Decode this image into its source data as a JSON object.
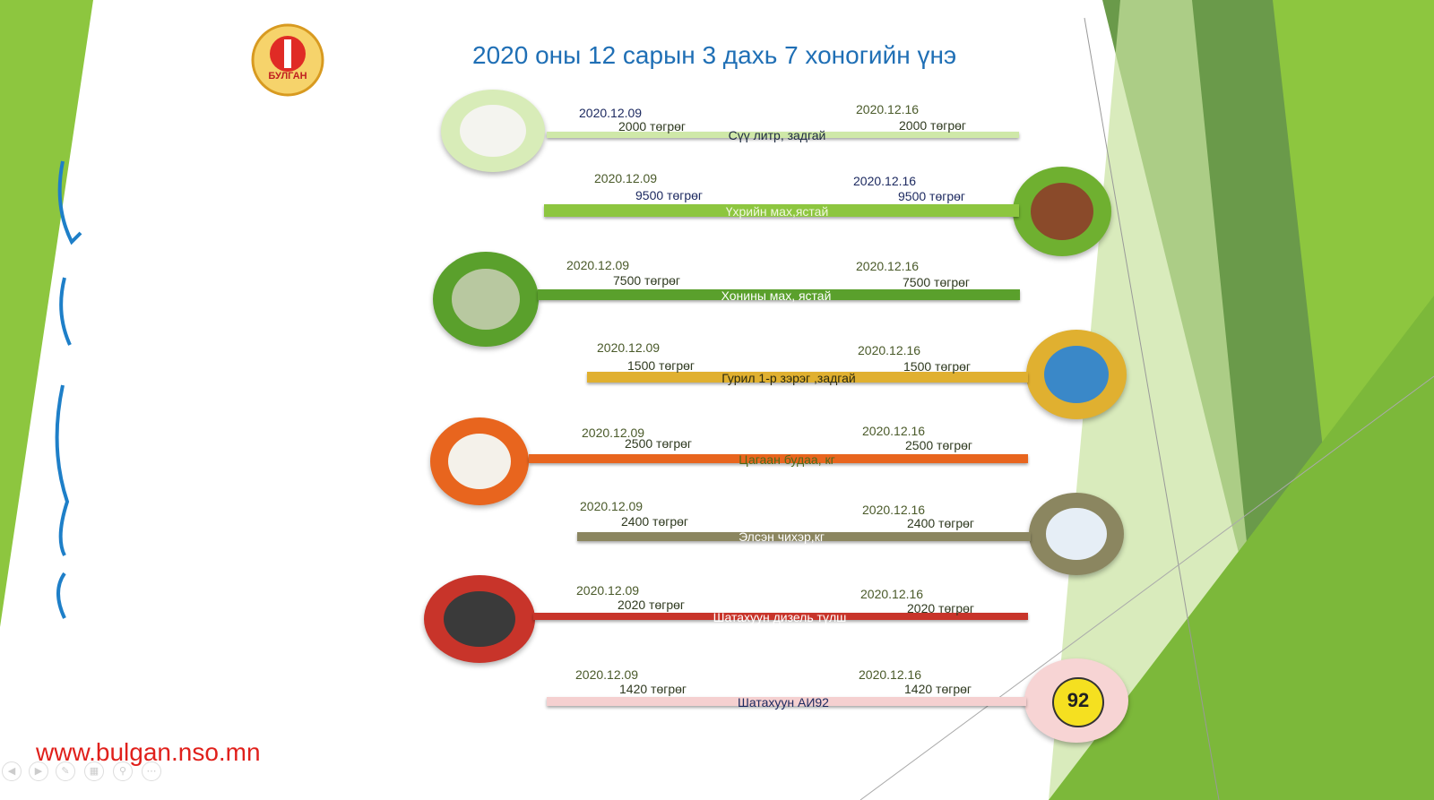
{
  "title": "2020 оны 12 сарын 3 дахь 7 хоногийн  үнэ",
  "logo_text": "БУЛГАН",
  "website": "www.bulgan.nso.mn",
  "colors": {
    "title": "#1f6fb5",
    "website": "#e0201b",
    "accent_green": "#8dc63f"
  },
  "items": [
    {
      "name": "Сүү литр, задгай",
      "date1": "2020.12.09",
      "price1": "2000 төгрөг",
      "date2": "2020.12.16",
      "price2": "2000 төгрөг",
      "color": "#cfe8a8",
      "icon": "milk-image"
    },
    {
      "name": "Үхрийн мах,ястай",
      "date1": "2020.12.09",
      "price1": "9500 төгрөг",
      "date2": "2020.12.16",
      "price2": "9500 төгрөг",
      "color": "#8dc63f",
      "icon": "cow-image"
    },
    {
      "name": "Хонины мах, ястай",
      "date1": "2020.12.09",
      "price1": "7500 төгрөг",
      "date2": "2020.12.16",
      "price2": "7500 төгрөг",
      "color": "#5aa02c",
      "icon": "sheep-image"
    },
    {
      "name": "Гурил 1-р зэрэг ,задгай",
      "date1": "2020.12.09",
      "price1": "1500 төгрөг",
      "date2": "2020.12.16",
      "price2": "1500 төгрөг",
      "color": "#e0b030",
      "icon": "flour-image"
    },
    {
      "name": "Цагаан будаа, кг",
      "date1": "2020.12.09",
      "price1": "2500 төгрөг",
      "date2": "2020.12.16",
      "price2": "2500 төгрөг",
      "color": "#e8651e",
      "icon": "rice-image"
    },
    {
      "name": "Элсэн чихэр,кг",
      "date1": "2020.12.09",
      "price1": "2400 төгрөг",
      "date2": "2020.12.16",
      "price2": "2400 төгрөг",
      "color": "#8b8660",
      "icon": "sugar-image"
    },
    {
      "name": "Шатахуун дизель түлш",
      "date1": "2020.12.09",
      "price1": "2020 төгрөг",
      "date2": "2020.12.16",
      "price2": "2020 төгрөг",
      "color": "#c8342a",
      "icon": "diesel-image"
    },
    {
      "name": "Шатахуун АИ92",
      "date1": "2020.12.09",
      "price1": "1420 төгрөг",
      "date2": "2020.12.16",
      "price2": "1420 төгрөг",
      "color": "#f5d0d0",
      "icon": "fuel-ai92-image",
      "icon_text": "92"
    }
  ]
}
